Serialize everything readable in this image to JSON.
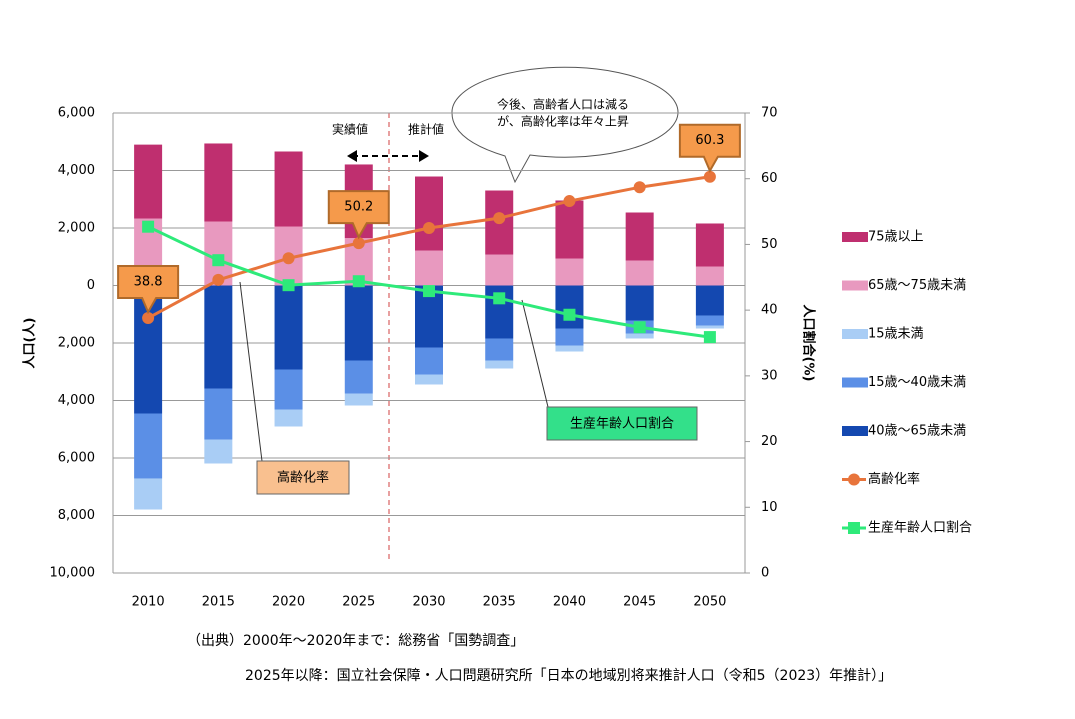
{
  "chart_data": {
    "type": "bar",
    "categories": [
      "2010",
      "2015",
      "2020",
      "2025",
      "2030",
      "2035",
      "2040",
      "2045",
      "2050"
    ],
    "series": [
      {
        "name": "75歳以上",
        "color": "#bf2f6f",
        "values": [
          2570,
          2714,
          2609,
          2560,
          2574,
          2226,
          2018,
          1669,
          1496
        ]
      },
      {
        "name": "65歳～75歳未満",
        "color": "#e899bf",
        "values": [
          2330,
          2226,
          2052,
          1650,
          1217,
          1078,
          939,
          870,
          661
        ]
      },
      {
        "name": "15歳未満",
        "color": "#a9cdf5",
        "values": [
          -1080,
          -834,
          -591,
          -417,
          -347,
          -278,
          -209,
          -173,
          -105
        ]
      },
      {
        "name": "15歳～40歳未満",
        "color": "#5b8fe6",
        "values": [
          -2260,
          -1774,
          -1391,
          -1148,
          -939,
          -766,
          -591,
          -453,
          -348
        ]
      },
      {
        "name": "40歳～65歳未満",
        "color": "#1448b0",
        "values": [
          -4452,
          -3583,
          -2922,
          -2609,
          -2157,
          -1843,
          -1496,
          -1217,
          -1043
        ]
      },
      {
        "name": "高齢化率",
        "type": "line",
        "axis": "y2",
        "color": "#e8743b",
        "values": [
          38.8,
          44.6,
          47.9,
          50.2,
          52.5,
          54.0,
          56.6,
          58.7,
          60.3
        ],
        "value_labels": [
          "38.8",
          null,
          null,
          "50.2",
          null,
          null,
          null,
          null,
          "60.3"
        ]
      },
      {
        "name": "生産年齢人口割合",
        "type": "line",
        "axis": "y2",
        "color": "#2eea7a",
        "values": [
          52.7,
          47.6,
          43.8,
          44.4,
          42.9,
          41.8,
          39.3,
          37.4,
          35.9
        ]
      }
    ],
    "ylabel": "人口(人)",
    "y2label": "人口割合(%)",
    "ylim": [
      -10000,
      6000
    ],
    "yticks": [
      {
        "value": 6000,
        "label": "6,000"
      },
      {
        "value": 4000,
        "label": "4,000"
      },
      {
        "value": 2000,
        "label": "2,000"
      },
      0,
      {
        "value": -2000,
        "label": "2,000"
      },
      {
        "value": -4000,
        "label": "4,000"
      },
      {
        "value": -6000,
        "label": "6,000"
      },
      {
        "value": -8000,
        "label": "8,000"
      },
      {
        "value": -10000,
        "label": "10,000"
      }
    ],
    "y2lim": [
      0,
      70
    ],
    "y2ticks": [
      0,
      10,
      20,
      30,
      40,
      50,
      60,
      70
    ],
    "grid": true,
    "legend": "right",
    "annotations": {
      "actual": "実績値",
      "forecast": "推計値",
      "bubble": [
        "今後、高齢者人口は減る",
        "が、高齢化率は年々上昇"
      ],
      "aging_box": "高齢化率",
      "working_box": "生産年齢人口割合"
    },
    "source": [
      "（出典）2000年～2020年まで：総務省「国勢調査」",
      "2025年以降：国立社会保障・人口問題研究所「日本の地域別将来推計人口（令和5（2023）年推計）」"
    ]
  }
}
